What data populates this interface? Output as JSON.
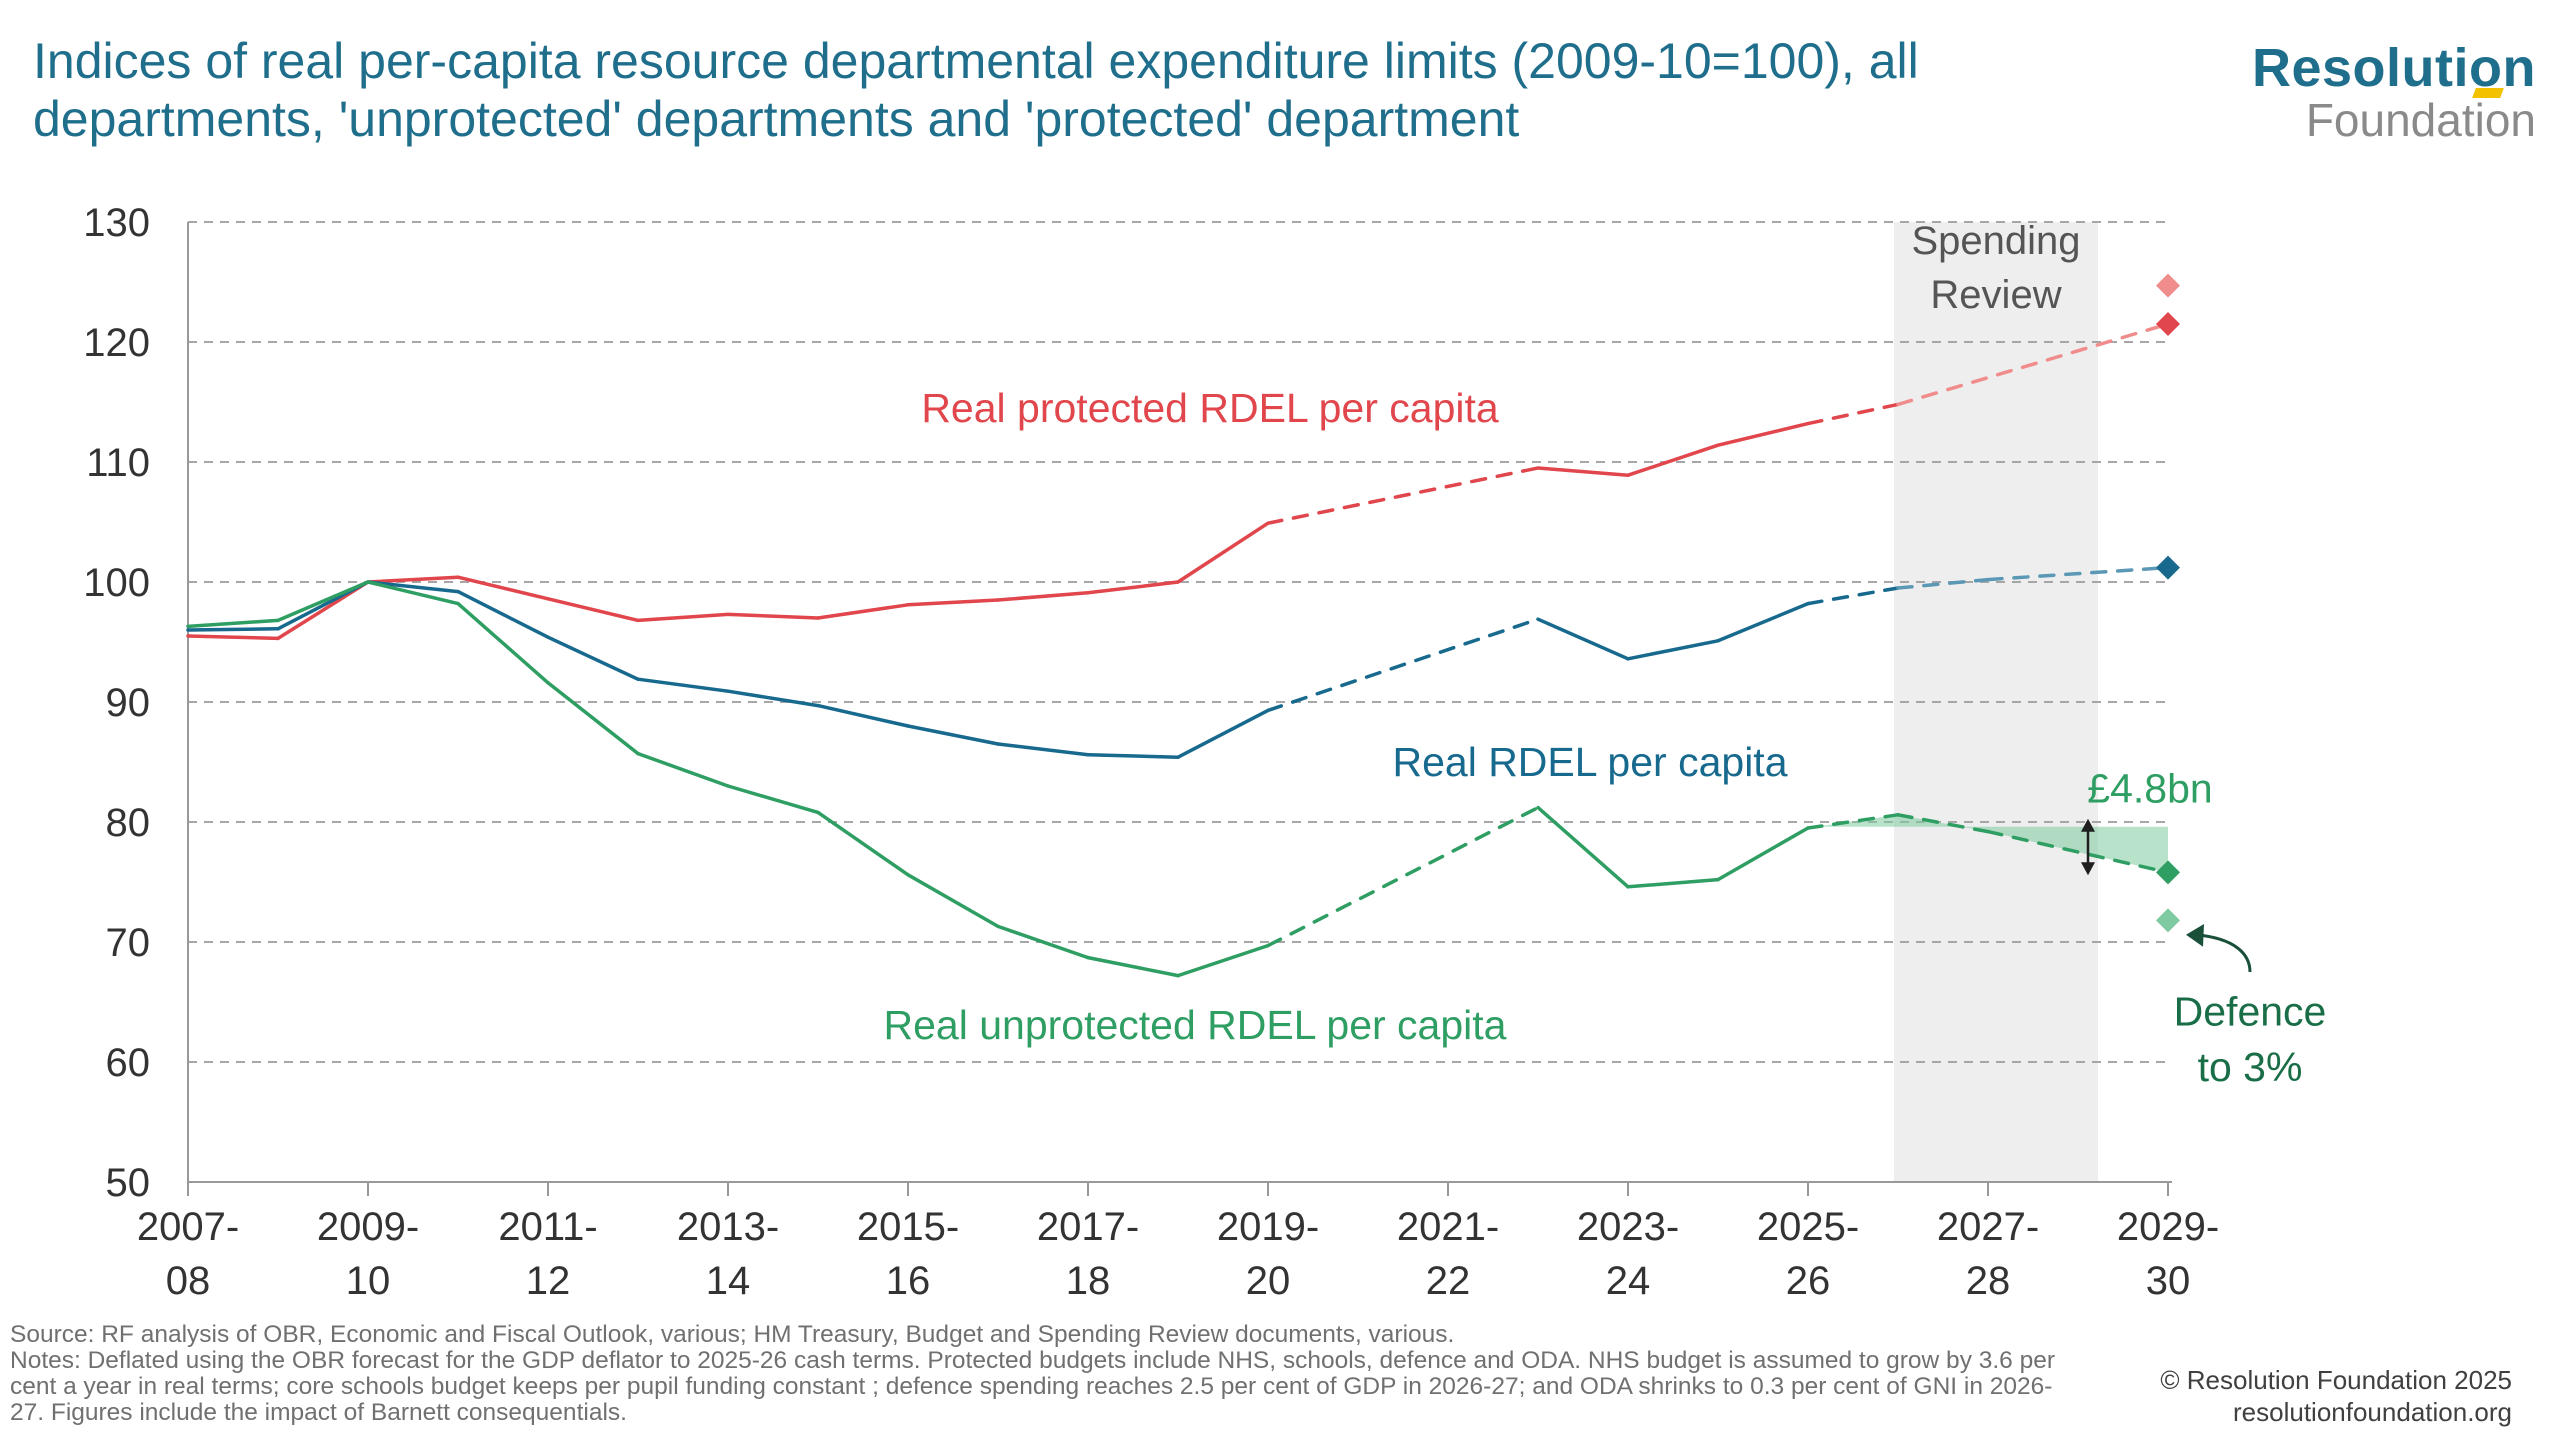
{
  "title": "Indices of real per-capita resource departmental expenditure limits (2009-10=100), all departments, 'unprotected' departments and 'protected' department",
  "logo": {
    "main": "Resolution",
    "sub": "Foundation"
  },
  "footer": {
    "source": "Source: RF analysis of OBR, Economic and Fiscal Outlook, various; HM Treasury, Budget and Spending Review documents, various.",
    "notes": "Notes: Deflated using the OBR forecast for the GDP deflator to 2025-26 cash terms. Protected budgets include NHS, schools, defence and ODA. NHS budget is assumed to grow by 3.6 per cent a year in real terms; core schools budget keeps per pupil funding constant ; defence spending reaches 2.5 per cent of GDP in 2026-27; and ODA shrinks to 0.3 per cent of GNI in 2026-27. Figures include the impact of Barnett consequentials."
  },
  "copyright": {
    "line1": "© Resolution Foundation 2025",
    "line2": "resolutionfoundation.org"
  },
  "colors": {
    "title": "#1f6e8c",
    "protected": "#e0464b",
    "protected_light": "#f08c8c",
    "all": "#17698e",
    "unprotected": "#2e9e63",
    "unprotected_light": "#7fcaa0",
    "shade": "#eeeeee",
    "grid": "#a6a6a6"
  },
  "chart_data": {
    "type": "line",
    "x": [
      "2007-08",
      "2008-09",
      "2009-10",
      "2010-11",
      "2011-12",
      "2012-13",
      "2013-14",
      "2014-15",
      "2015-16",
      "2016-17",
      "2017-18",
      "2018-19",
      "2019-20",
      "2020-21",
      "2021-22",
      "2022-23",
      "2023-24",
      "2024-25",
      "2025-26",
      "2026-27",
      "2027-28",
      "2028-29",
      "2029-30"
    ],
    "x_tick_labels": [
      [
        "2007-",
        "08"
      ],
      [
        "2009-",
        "10"
      ],
      [
        "2011-",
        "12"
      ],
      [
        "2013-",
        "14"
      ],
      [
        "2015-",
        "16"
      ],
      [
        "2017-",
        "18"
      ],
      [
        "2019-",
        "20"
      ],
      [
        "2021-",
        "22"
      ],
      [
        "2023-",
        "24"
      ],
      [
        "2025-",
        "26"
      ],
      [
        "2027-",
        "28"
      ],
      [
        "2029-",
        "30"
      ]
    ],
    "ylim": [
      50,
      130
    ],
    "yticks": [
      50,
      60,
      70,
      80,
      90,
      100,
      110,
      120,
      130
    ],
    "grid": "horizontal dashed",
    "series": [
      {
        "name": "Real protected RDEL per capita",
        "color": "#e0464b",
        "values": [
          95.5,
          95.3,
          100,
          100.4,
          98.6,
          96.8,
          97.3,
          97.0,
          98.1,
          98.5,
          99.1,
          100.0,
          104.9,
          null,
          null,
          109.5,
          108.9,
          111.4,
          113.2,
          114.8,
          null,
          null,
          121.5
        ],
        "dashed_from": "2019-20",
        "dashed_range": [
          [
            "2019-20",
            "2022-23"
          ],
          [
            "2025-26",
            "2029-30"
          ]
        ]
      },
      {
        "name": "Real RDEL per capita",
        "color": "#17698e",
        "values": [
          96.0,
          96.1,
          100,
          99.2,
          95.4,
          91.9,
          90.9,
          89.7,
          88.0,
          86.5,
          85.6,
          85.4,
          89.3,
          null,
          null,
          96.9,
          93.6,
          95.1,
          98.2,
          99.5,
          100.2,
          null,
          101.2
        ],
        "dashed_range": [
          [
            "2019-20",
            "2022-23"
          ],
          [
            "2025-26",
            "2029-30"
          ]
        ]
      },
      {
        "name": "Real unprotected RDEL per capita",
        "color": "#2e9e63",
        "values": [
          96.3,
          96.8,
          100,
          98.2,
          91.6,
          85.7,
          83.0,
          80.8,
          75.6,
          71.3,
          68.7,
          67.2,
          69.7,
          null,
          null,
          81.2,
          74.6,
          75.2,
          79.5,
          80.6,
          79.2,
          null,
          75.8
        ],
        "dashed_range": [
          [
            "2019-20",
            "2022-23"
          ],
          [
            "2025-26",
            "2029-30"
          ]
        ]
      }
    ],
    "markers": [
      {
        "x": "2029-30",
        "y": 124.7,
        "color": "#f08c8c"
      },
      {
        "x": "2029-30",
        "y": 121.5,
        "color": "#e0464b"
      },
      {
        "x": "2029-30",
        "y": 101.2,
        "color": "#17698e"
      },
      {
        "x": "2029-30",
        "y": 75.8,
        "color": "#2e9e63"
      },
      {
        "x": "2029-30",
        "y": 71.8,
        "color": "#7fcaa0"
      }
    ],
    "shaded_region": {
      "from": "2026-27",
      "to": "2028-29",
      "label_lines": [
        "Spending",
        "Review"
      ]
    },
    "gap_band": {
      "from": "2025-26",
      "to": "2029-30",
      "top": 79.6,
      "label": "£4.8bn"
    },
    "annotations": [
      {
        "text": "Real protected RDEL per capita",
        "color": "#e0464b",
        "anchor_x": "2014-15",
        "y": 114.5
      },
      {
        "text": "Real RDEL per capita",
        "color": "#17698e",
        "anchor_x": "2021-22",
        "y": 85
      },
      {
        "text": "Real unprotected RDEL per capita",
        "color": "#2e9e63",
        "anchor_x": "2014-15",
        "y": 63
      },
      {
        "text": "£4.8bn",
        "color": "#2e9e63"
      },
      {
        "text_lines": [
          "Defence",
          "to 3%"
        ],
        "color": "#1a6e47"
      }
    ]
  }
}
